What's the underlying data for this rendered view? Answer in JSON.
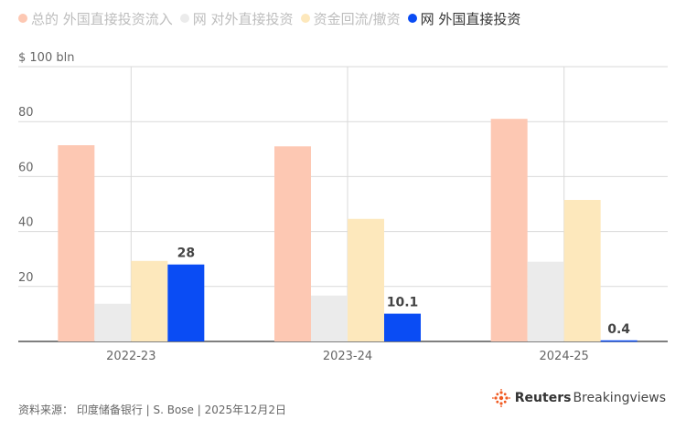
{
  "legend": [
    {
      "label": "总的 外国直接投资流入",
      "color": "#fdc8b3",
      "icon": "dot-icon"
    },
    {
      "label": "网 对外直接投资",
      "color": "#ebebeb",
      "icon": "dot-icon"
    },
    {
      "label": "资金回流/撤资",
      "color": "#fde8bc",
      "icon": "dot-icon"
    },
    {
      "label": "网 外国直接投资",
      "color": "#0a4cf4",
      "icon": "dot-icon"
    }
  ],
  "footer": {
    "source": "资料来源：  印度储备银行 | S. Bose | 2025年12月2日"
  },
  "brand": {
    "icon": "reuters-dot-logo-icon",
    "name_bold": "Reuters",
    "name_light": "Breakingviews"
  },
  "chart_data": {
    "type": "bar",
    "categories": [
      "2022-23",
      "2023-24",
      "2024-25"
    ],
    "series": [
      {
        "name": "总的 外国直接投资流入",
        "values": [
          71.4,
          71.0,
          81.0
        ],
        "color": "#fdc8b3"
      },
      {
        "name": "网 对外直接投资",
        "values": [
          13.7,
          16.7,
          29.0
        ],
        "color": "#ebebeb"
      },
      {
        "name": "资金回流/撤资",
        "values": [
          29.3,
          44.6,
          51.5
        ],
        "color": "#fde8bc"
      },
      {
        "name": "网 外国直接投资",
        "values": [
          28,
          10.1,
          0.4
        ],
        "color": "#0a4cf4",
        "labels": [
          "28",
          "10.1",
          "0.4"
        ]
      }
    ],
    "yticks": [
      "20",
      "40",
      "60",
      "80",
      "$ 100 bln"
    ],
    "ytick_values": [
      20,
      40,
      60,
      80,
      100
    ],
    "ylim": [
      0,
      100
    ],
    "grid": true
  }
}
